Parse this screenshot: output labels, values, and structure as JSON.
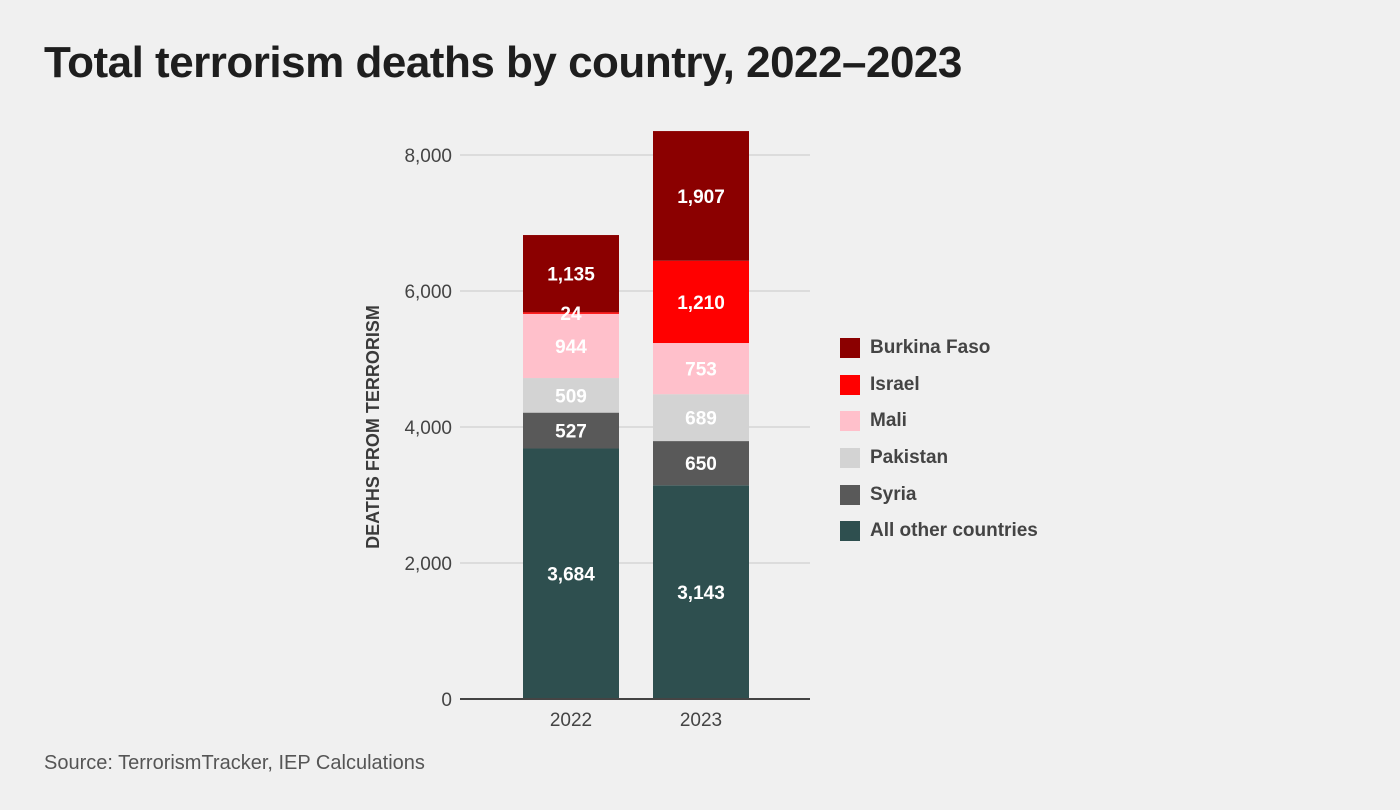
{
  "title": "Total terrorism deaths by country, 2022–2023",
  "source": "Source: TerrorismTracker, IEP Calculations",
  "chart_data": {
    "type": "bar",
    "stacked": true,
    "categories": [
      "2022",
      "2023"
    ],
    "series": [
      {
        "name": "All other countries",
        "color": "#2e4f4f",
        "values": [
          3684,
          3143
        ]
      },
      {
        "name": "Syria",
        "color": "#595959",
        "values": [
          527,
          650
        ]
      },
      {
        "name": "Pakistan",
        "color": "#d3d3d3",
        "values": [
          509,
          689
        ]
      },
      {
        "name": "Mali",
        "color": "#ffc0cb",
        "values": [
          944,
          753
        ]
      },
      {
        "name": "Israel",
        "color": "#ff0000",
        "values": [
          24,
          1210
        ]
      },
      {
        "name": "Burkina Faso",
        "color": "#8b0000",
        "values": [
          1135,
          1907
        ]
      }
    ],
    "ylabel": "DEATHS FROM TERRORISM",
    "xlabel": "",
    "ylim": [
      0,
      8000
    ],
    "yticks": [
      0,
      2000,
      4000,
      6000,
      8000
    ],
    "ytick_labels": [
      "0",
      "2,000",
      "4,000",
      "6,000",
      "8,000"
    ],
    "grid": true,
    "legend_position": "right",
    "legend_order": [
      "Burkina Faso",
      "Israel",
      "Mali",
      "Pakistan",
      "Syria",
      "All other countries"
    ]
  }
}
